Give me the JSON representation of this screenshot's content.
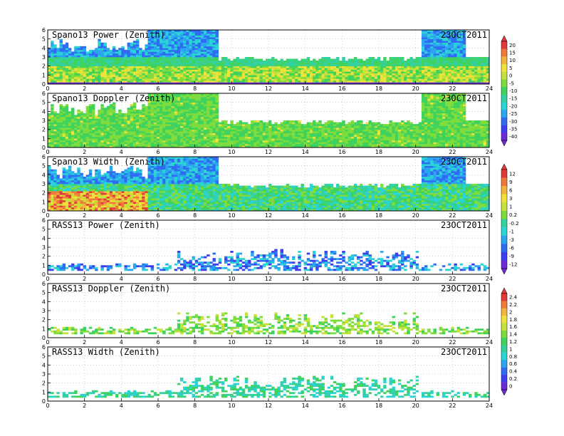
{
  "chart_data": [
    {
      "type": "heatmap",
      "title": "Spano13 Power (Zenith)",
      "date": "23OCT2011",
      "xlim": [
        0,
        24
      ],
      "ylim": [
        0,
        6
      ],
      "xticks": [
        "0",
        "2",
        "4",
        "6",
        "8",
        "10",
        "12",
        "14",
        "16",
        "18",
        "20",
        "22",
        "24"
      ],
      "yticks": [
        "0",
        "1",
        "2",
        "3",
        "4",
        "5",
        "6"
      ],
      "colorbar_group": 0
    },
    {
      "type": "heatmap",
      "title": "Spano13 Doppler (Zenith)",
      "date": "23OCT2011",
      "xlim": [
        0,
        24
      ],
      "ylim": [
        0,
        6
      ],
      "xticks": [
        "0",
        "2",
        "4",
        "6",
        "8",
        "10",
        "12",
        "14",
        "16",
        "18",
        "20",
        "22",
        "24"
      ],
      "yticks": [
        "0",
        "1",
        "2",
        "3",
        "4",
        "5",
        "6"
      ],
      "colorbar_group": 0
    },
    {
      "type": "heatmap",
      "title": "Spano13 Width (Zenith)",
      "date": "23OCT2011",
      "xlim": [
        0,
        24
      ],
      "ylim": [
        0,
        6
      ],
      "xticks": [
        "0",
        "2",
        "4",
        "6",
        "8",
        "10",
        "12",
        "14",
        "16",
        "18",
        "20",
        "22",
        "24"
      ],
      "yticks": [
        "0",
        "1",
        "2",
        "3",
        "4",
        "5",
        "6"
      ],
      "colorbar_group": 1
    },
    {
      "type": "heatmap",
      "title": "RASS13 Power (Zenith)",
      "date": "23OCT2011",
      "xlim": [
        0,
        24
      ],
      "ylim": [
        0,
        6
      ],
      "xticks": [
        "0",
        "2",
        "4",
        "6",
        "8",
        "10",
        "12",
        "14",
        "16",
        "18",
        "20",
        "22",
        "24"
      ],
      "yticks": [
        "0",
        "1",
        "2",
        "3",
        "4",
        "5",
        "6"
      ],
      "colorbar_group": 1
    },
    {
      "type": "heatmap",
      "title": "RASS13 Doppler (Zenith)",
      "date": "23OCT2011",
      "xlim": [
        0,
        24
      ],
      "ylim": [
        0,
        6
      ],
      "xticks": [
        "0",
        "2",
        "4",
        "6",
        "8",
        "10",
        "12",
        "14",
        "16",
        "18",
        "20",
        "22",
        "24"
      ],
      "yticks": [
        "0",
        "1",
        "2",
        "3",
        "4",
        "5",
        "6"
      ],
      "colorbar_group": 2
    },
    {
      "type": "heatmap",
      "title": "RASS13 Width (Zenith)",
      "date": "23OCT2011",
      "xlim": [
        0,
        24
      ],
      "ylim": [
        0,
        6
      ],
      "xticks": [
        "0",
        "2",
        "4",
        "6",
        "8",
        "10",
        "12",
        "14",
        "16",
        "18",
        "20",
        "22",
        "24"
      ],
      "yticks": [
        "0",
        "1",
        "2",
        "3",
        "4",
        "5",
        "6"
      ],
      "colorbar_group": 2
    }
  ],
  "colorbars": [
    {
      "labels": [
        "20",
        "15",
        "10",
        "5",
        "0",
        "-5",
        "-10",
        "-15",
        "-20",
        "-25",
        "-30",
        "-35",
        "-40"
      ]
    },
    {
      "labels": [
        "12",
        "9",
        "6",
        "3",
        "1",
        "0.2",
        "-0.2",
        "-1",
        "-3",
        "-6",
        "-9",
        "-12"
      ]
    },
    {
      "labels": [
        "2.4",
        "2.2",
        "2",
        "1.8",
        "1.6",
        "1.4",
        "1.2",
        "1",
        "0.8",
        "0.6",
        "0.4",
        "0.2",
        "0"
      ]
    }
  ]
}
